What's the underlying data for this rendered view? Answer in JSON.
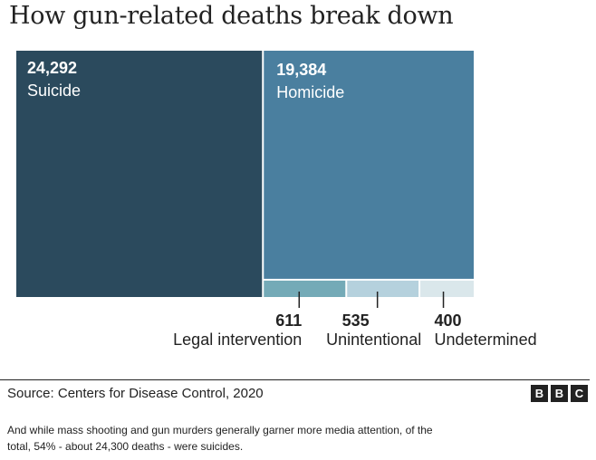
{
  "title": "How gun-related deaths break down",
  "chart_data": {
    "type": "treemap",
    "title": "How gun-related deaths break down",
    "categories": [
      "Suicide",
      "Homicide",
      "Legal intervention",
      "Unintentional",
      "Undetermined"
    ],
    "values": [
      24292,
      19384,
      611,
      535,
      400
    ],
    "value_labels": [
      "24,292",
      "19,384",
      "611",
      "535",
      "400"
    ],
    "colors": [
      "#2b4a5d",
      "#4a7f9f",
      "#74aab7",
      "#b5d1dd",
      "#dae7eb"
    ]
  },
  "source": "Source: Centers for Disease Control, 2020",
  "logo": [
    "B",
    "B",
    "C"
  ],
  "caption": "And while mass shooting and gun murders generally garner more media attention, of the total, 54% - about 24,300 deaths - were suicides."
}
